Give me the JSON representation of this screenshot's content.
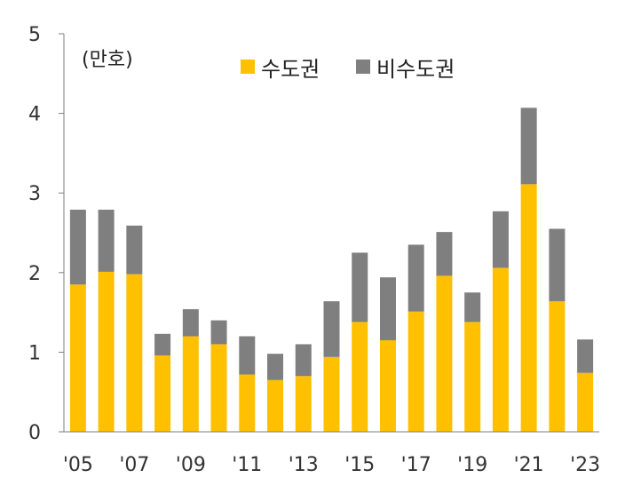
{
  "chart_data": {
    "type": "bar",
    "stacked": true,
    "unit_label": "(만호)",
    "categories": [
      "2005",
      "2006",
      "2007",
      "2008",
      "2009",
      "2010",
      "2011",
      "2012",
      "2013",
      "2014",
      "2015",
      "2016",
      "2017",
      "2018",
      "2019",
      "2020",
      "2021",
      "2022",
      "2023"
    ],
    "x_tick_labels": [
      "'05",
      "'07",
      "'09",
      "'11",
      "'13",
      "'15",
      "'17",
      "'19",
      "'21",
      "'23"
    ],
    "y_ticks": [
      "0",
      "1",
      "2",
      "3",
      "4",
      "5"
    ],
    "ylim": [
      0,
      5
    ],
    "grid": false,
    "legend_position": "top",
    "series": [
      {
        "name": "수도권",
        "color": "#FFC000",
        "values": [
          1.85,
          2.01,
          1.98,
          0.96,
          1.2,
          1.1,
          0.72,
          0.65,
          0.7,
          0.94,
          1.38,
          1.15,
          1.51,
          1.96,
          1.38,
          2.06,
          3.11,
          1.64,
          0.74
        ]
      },
      {
        "name": "비수도권",
        "color": "#7F7F7F",
        "values": [
          0.94,
          0.78,
          0.61,
          0.27,
          0.34,
          0.3,
          0.48,
          0.33,
          0.4,
          0.7,
          0.87,
          0.79,
          0.84,
          0.55,
          0.37,
          0.71,
          0.96,
          0.91,
          0.42
        ]
      }
    ]
  }
}
